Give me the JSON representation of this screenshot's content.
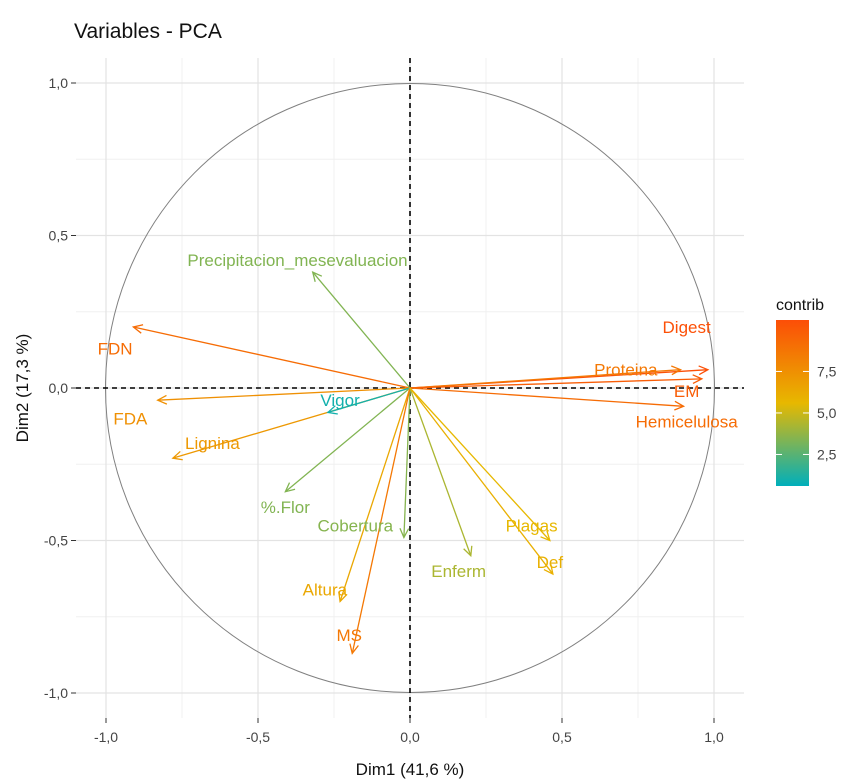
{
  "chart_data": {
    "type": "scatter",
    "subtype": "pca-variable-correlation-circle",
    "title": "Variables - PCA",
    "xlabel": "Dim1 (41,6 %)",
    "ylabel": "Dim2 (17,3 %)",
    "xlim": [
      -1.0,
      1.0
    ],
    "ylim": [
      -1.0,
      1.0
    ],
    "x_ticks": [
      {
        "value": -1.0,
        "label": "-1,0"
      },
      {
        "value": -0.5,
        "label": "-0,5"
      },
      {
        "value": 0.0,
        "label": "0,0"
      },
      {
        "value": 0.5,
        "label": "0,5"
      },
      {
        "value": 1.0,
        "label": "1,0"
      }
    ],
    "y_ticks": [
      {
        "value": 1.0,
        "label": "1,0"
      },
      {
        "value": 0.5,
        "label": "0,5"
      },
      {
        "value": 0.0,
        "label": "0,0"
      },
      {
        "value": -0.5,
        "label": "-0,5"
      },
      {
        "value": -1.0,
        "label": "-1,0"
      }
    ],
    "grid": true,
    "unit_circle": true,
    "color_by": "contrib",
    "variables": [
      {
        "name": "Digest",
        "x": 0.98,
        "y": 0.06,
        "contrib": 10.5,
        "label_x": 0.91,
        "label_y": 0.2
      },
      {
        "name": "Proteina",
        "x": 0.89,
        "y": 0.06,
        "contrib": 8.6,
        "label_x": 0.71,
        "label_y": 0.06
      },
      {
        "name": "EM",
        "x": 0.96,
        "y": 0.03,
        "contrib": 9.9,
        "label_x": 0.91,
        "label_y": -0.01
      },
      {
        "name": "Hemicelulosa",
        "x": 0.9,
        "y": -0.06,
        "contrib": 9.2,
        "label_x": 0.91,
        "label_y": -0.11
      },
      {
        "name": "FDN",
        "x": -0.91,
        "y": 0.2,
        "contrib": 9.2,
        "label_x": -0.97,
        "label_y": 0.13
      },
      {
        "name": "FDA",
        "x": -0.83,
        "y": -0.04,
        "contrib": 7.5,
        "label_x": -0.92,
        "label_y": -0.1
      },
      {
        "name": "Lignina",
        "x": -0.78,
        "y": -0.23,
        "contrib": 7.1,
        "label_x": -0.65,
        "label_y": -0.18
      },
      {
        "name": "Vigor",
        "x": -0.27,
        "y": -0.08,
        "contrib": 1.0,
        "label_x": -0.23,
        "label_y": -0.04
      },
      {
        "name": "Precipitacion_mesevaluacion",
        "x": -0.32,
        "y": 0.38,
        "contrib": 3.4,
        "label_x": -0.37,
        "label_y": 0.42
      },
      {
        "name": "%.Flor",
        "x": -0.41,
        "y": -0.34,
        "contrib": 3.4,
        "label_x": -0.41,
        "label_y": -0.39
      },
      {
        "name": "Cobertura",
        "x": -0.02,
        "y": -0.49,
        "contrib": 3.5,
        "label_x": -0.18,
        "label_y": -0.45
      },
      {
        "name": "Altura",
        "x": -0.23,
        "y": -0.7,
        "contrib": 6.4,
        "label_x": -0.28,
        "label_y": -0.66
      },
      {
        "name": "MS",
        "x": -0.19,
        "y": -0.87,
        "contrib": 8.6,
        "label_x": -0.2,
        "label_y": -0.81
      },
      {
        "name": "Enferm",
        "x": 0.2,
        "y": -0.55,
        "contrib": 4.3,
        "label_x": 0.16,
        "label_y": -0.6
      },
      {
        "name": "Plagas",
        "x": 0.46,
        "y": -0.5,
        "contrib": 5.6,
        "label_x": 0.4,
        "label_y": -0.45
      },
      {
        "name": "Def",
        "x": 0.47,
        "y": -0.61,
        "contrib": 6.0,
        "label_x": 0.46,
        "label_y": -0.57
      }
    ],
    "legend": {
      "title": "contrib",
      "position": "right",
      "ticks": [
        {
          "value": 2.5,
          "label": "2,5"
        },
        {
          "value": 5.0,
          "label": "5,0"
        },
        {
          "value": 7.5,
          "label": "7,5"
        }
      ],
      "range": [
        0.6,
        10.6
      ],
      "colors": [
        "#00AFBB",
        "#E7B800",
        "#FC4E07"
      ]
    }
  }
}
